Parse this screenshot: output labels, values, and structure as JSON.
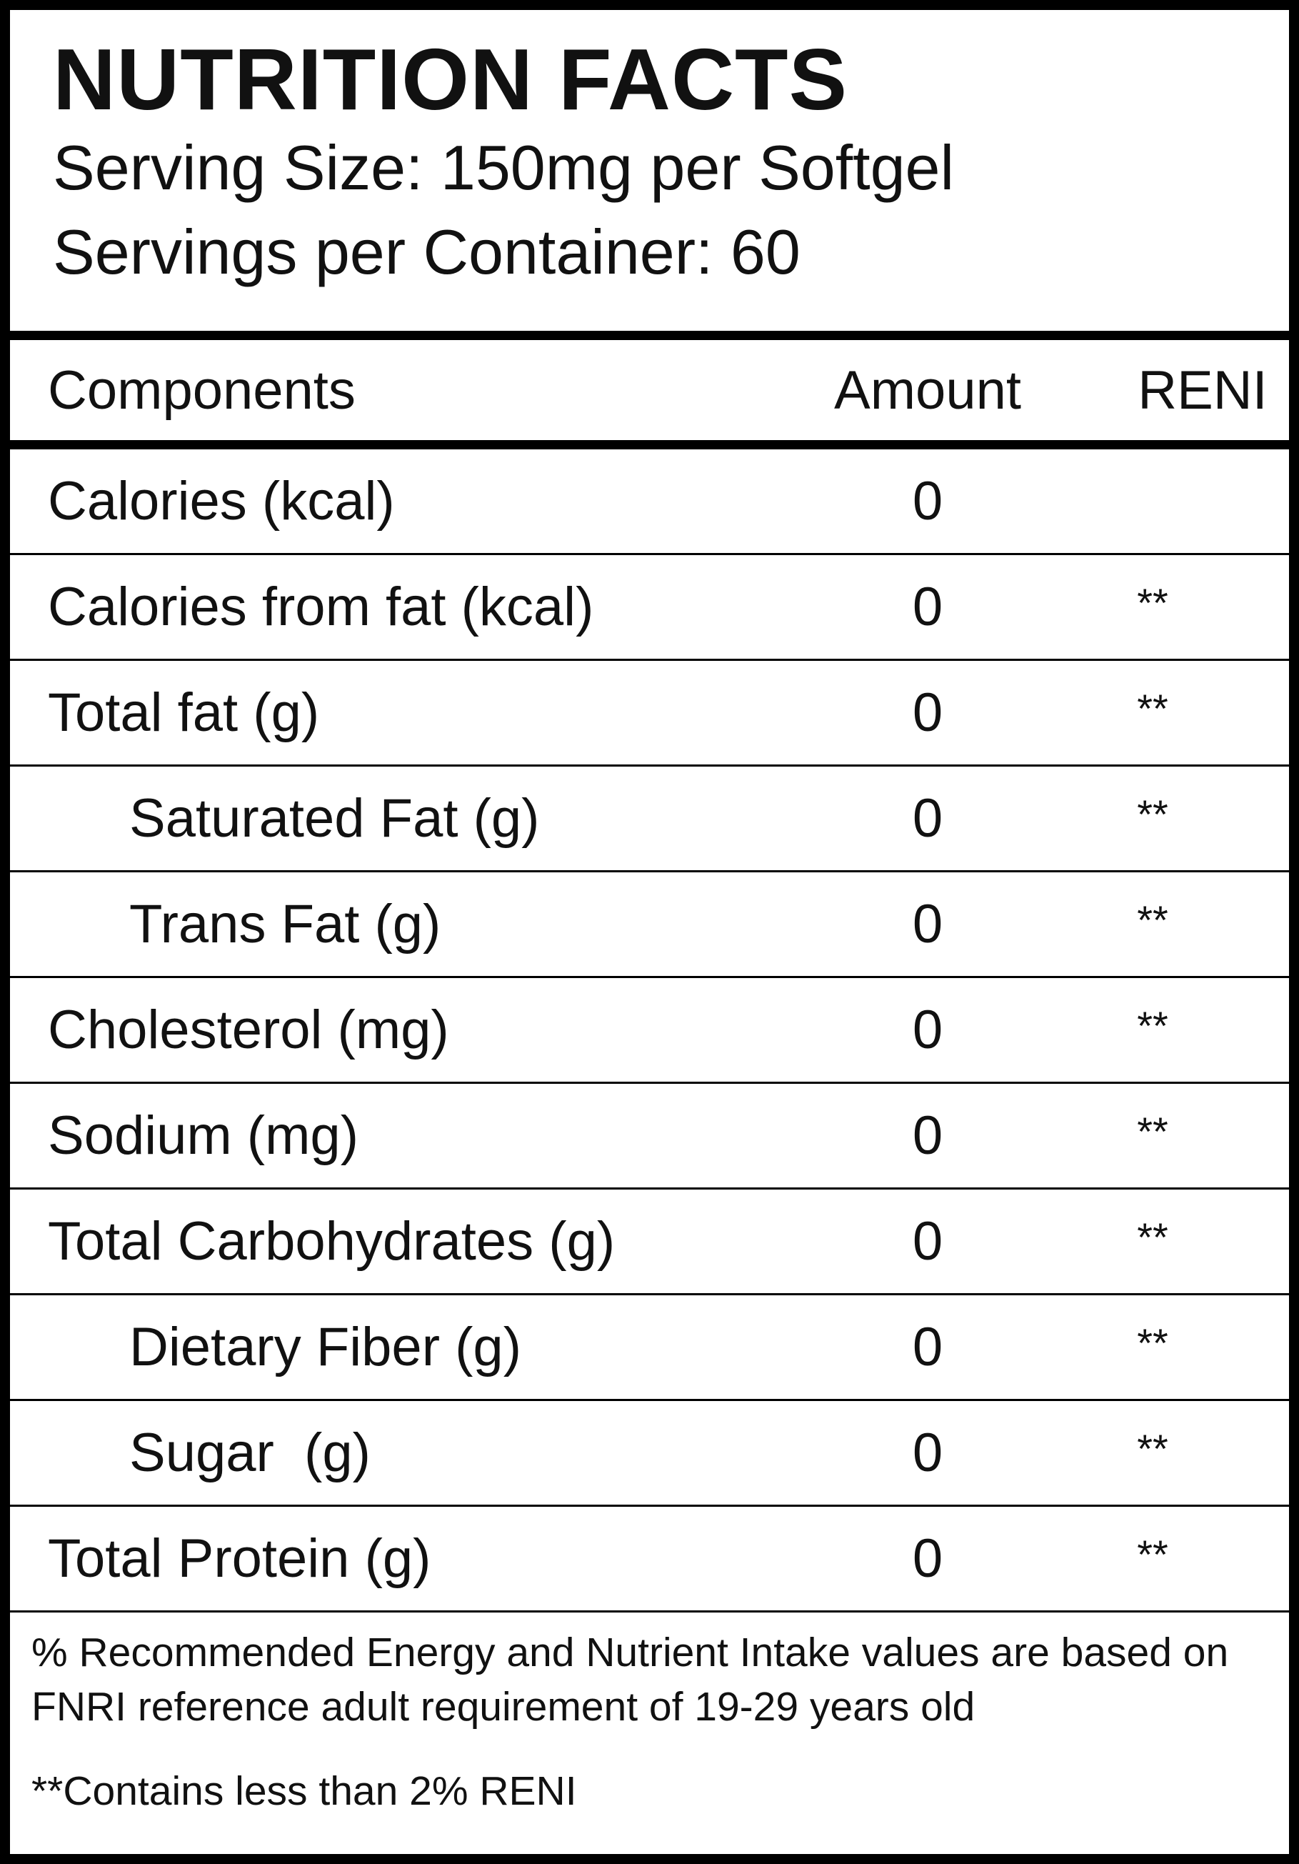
{
  "header": {
    "title": "NUTRITION FACTS",
    "serving_size": "Serving Size: 150mg per Softgel",
    "servings": "Servings per Container: 60"
  },
  "table": {
    "columns": [
      "Components",
      "Amount",
      "RENI"
    ],
    "rows": [
      {
        "label": "Calories (kcal)",
        "amount": 0
      },
      {
        "label": "Calories from fat (kcal)",
        "amount": 0,
        "reni": "**"
      },
      {
        "label": "Total fat (g)",
        "amount": 0,
        "reni": "**"
      },
      {
        "label": "Saturated Fat (g)",
        "amount": 0,
        "reni": "**"
      },
      {
        "label": "Trans Fat (g)",
        "amount": 0,
        "reni": "**"
      },
      {
        "label": "Cholesterol (mg)",
        "amount": 0,
        "reni": "**"
      },
      {
        "label": "Sodium (mg)",
        "amount": 0,
        "reni": "**"
      },
      {
        "label": "Total Carbohydrates (g)",
        "amount": 0,
        "reni": "**"
      },
      {
        "label": "Dietary Fiber (g)",
        "amount": 0,
        "reni": "**"
      },
      {
        "label": "Sugar  (g)",
        "amount": 0,
        "reni": "**"
      },
      {
        "label": "Total Protein (g)",
        "amount": 0,
        "reni": "**"
      }
    ]
  },
  "footer": {
    "note": "% Recommended Energy and Nutrient Intake values are based on FNRI reference adult requirement of 19-29 years old",
    "footnote": "**Contains less than 2% RENI"
  }
}
